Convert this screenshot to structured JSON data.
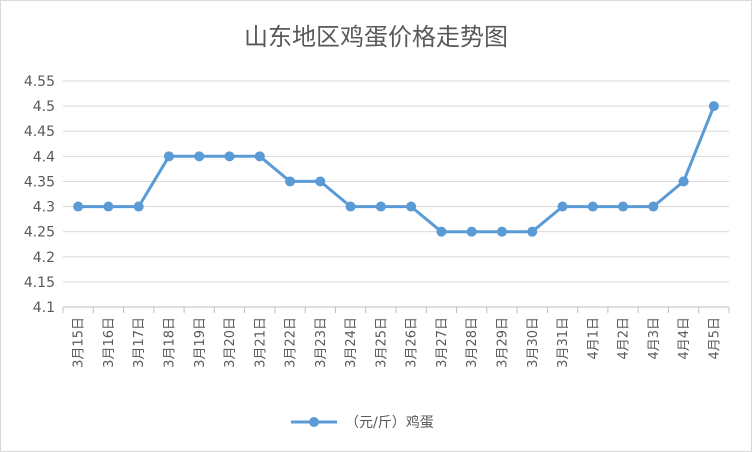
{
  "chart_data": {
    "type": "line",
    "title": "山东地区鸡蛋价格走势图",
    "categories": [
      "3月15日",
      "3月16日",
      "3月17日",
      "3月18日",
      "3月19日",
      "3月20日",
      "3月21日",
      "3月22日",
      "3月23日",
      "3月24日",
      "3月25日",
      "3月26日",
      "3月27日",
      "3月28日",
      "3月29日",
      "3月30日",
      "3月31日",
      "4月1日",
      "4月2日",
      "4月3日",
      "4月4日",
      "4月5日"
    ],
    "series": [
      {
        "name": "（元/斤）鸡蛋",
        "color": "#5b9bd5",
        "values": [
          4.3,
          4.3,
          4.3,
          4.4,
          4.4,
          4.4,
          4.4,
          4.35,
          4.35,
          4.3,
          4.3,
          4.3,
          4.25,
          4.25,
          4.25,
          4.25,
          4.3,
          4.3,
          4.3,
          4.3,
          4.35,
          4.5
        ]
      }
    ],
    "ylim": [
      4.1,
      4.55
    ],
    "yticks": [
      "4.1",
      "4.15",
      "4.2",
      "4.25",
      "4.3",
      "4.35",
      "4.4",
      "4.45",
      "4.5",
      "4.55"
    ],
    "xlabel": "",
    "ylabel": "",
    "grid": true,
    "legend": "bottom"
  }
}
